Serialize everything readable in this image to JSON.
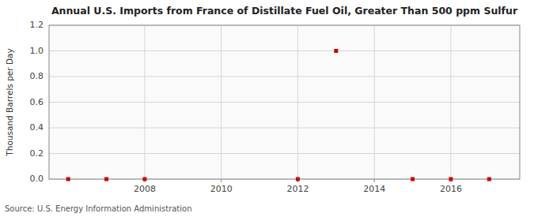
{
  "chart_data": {
    "type": "scatter",
    "title": "Annual U.S. Imports from France of Distillate Fuel Oil, Greater Than 500 ppm Sulfur",
    "y_label": "Thousand Barrels per Day",
    "source": "Source: U.S. Energy Information Administration",
    "x": [
      2006,
      2007,
      2008,
      2012,
      2013,
      2015,
      2016,
      2017
    ],
    "values": [
      0.0,
      0.0,
      0.0,
      0.0,
      1.0,
      0.0,
      0.0,
      0.0
    ],
    "color": "#cc0000",
    "marker": "square",
    "xlim": [
      2005.5,
      2017.8
    ],
    "xticks": [
      2008,
      2010,
      2012,
      2014,
      2016
    ],
    "ylim": [
      0.0,
      1.2
    ],
    "yticks": [
      {
        "value": 0.0,
        "label": "0.0"
      },
      0.2,
      0.4,
      0.6,
      0.8,
      {
        "value": 1.0,
        "label": "1.0"
      },
      1.2
    ],
    "grid": true
  }
}
